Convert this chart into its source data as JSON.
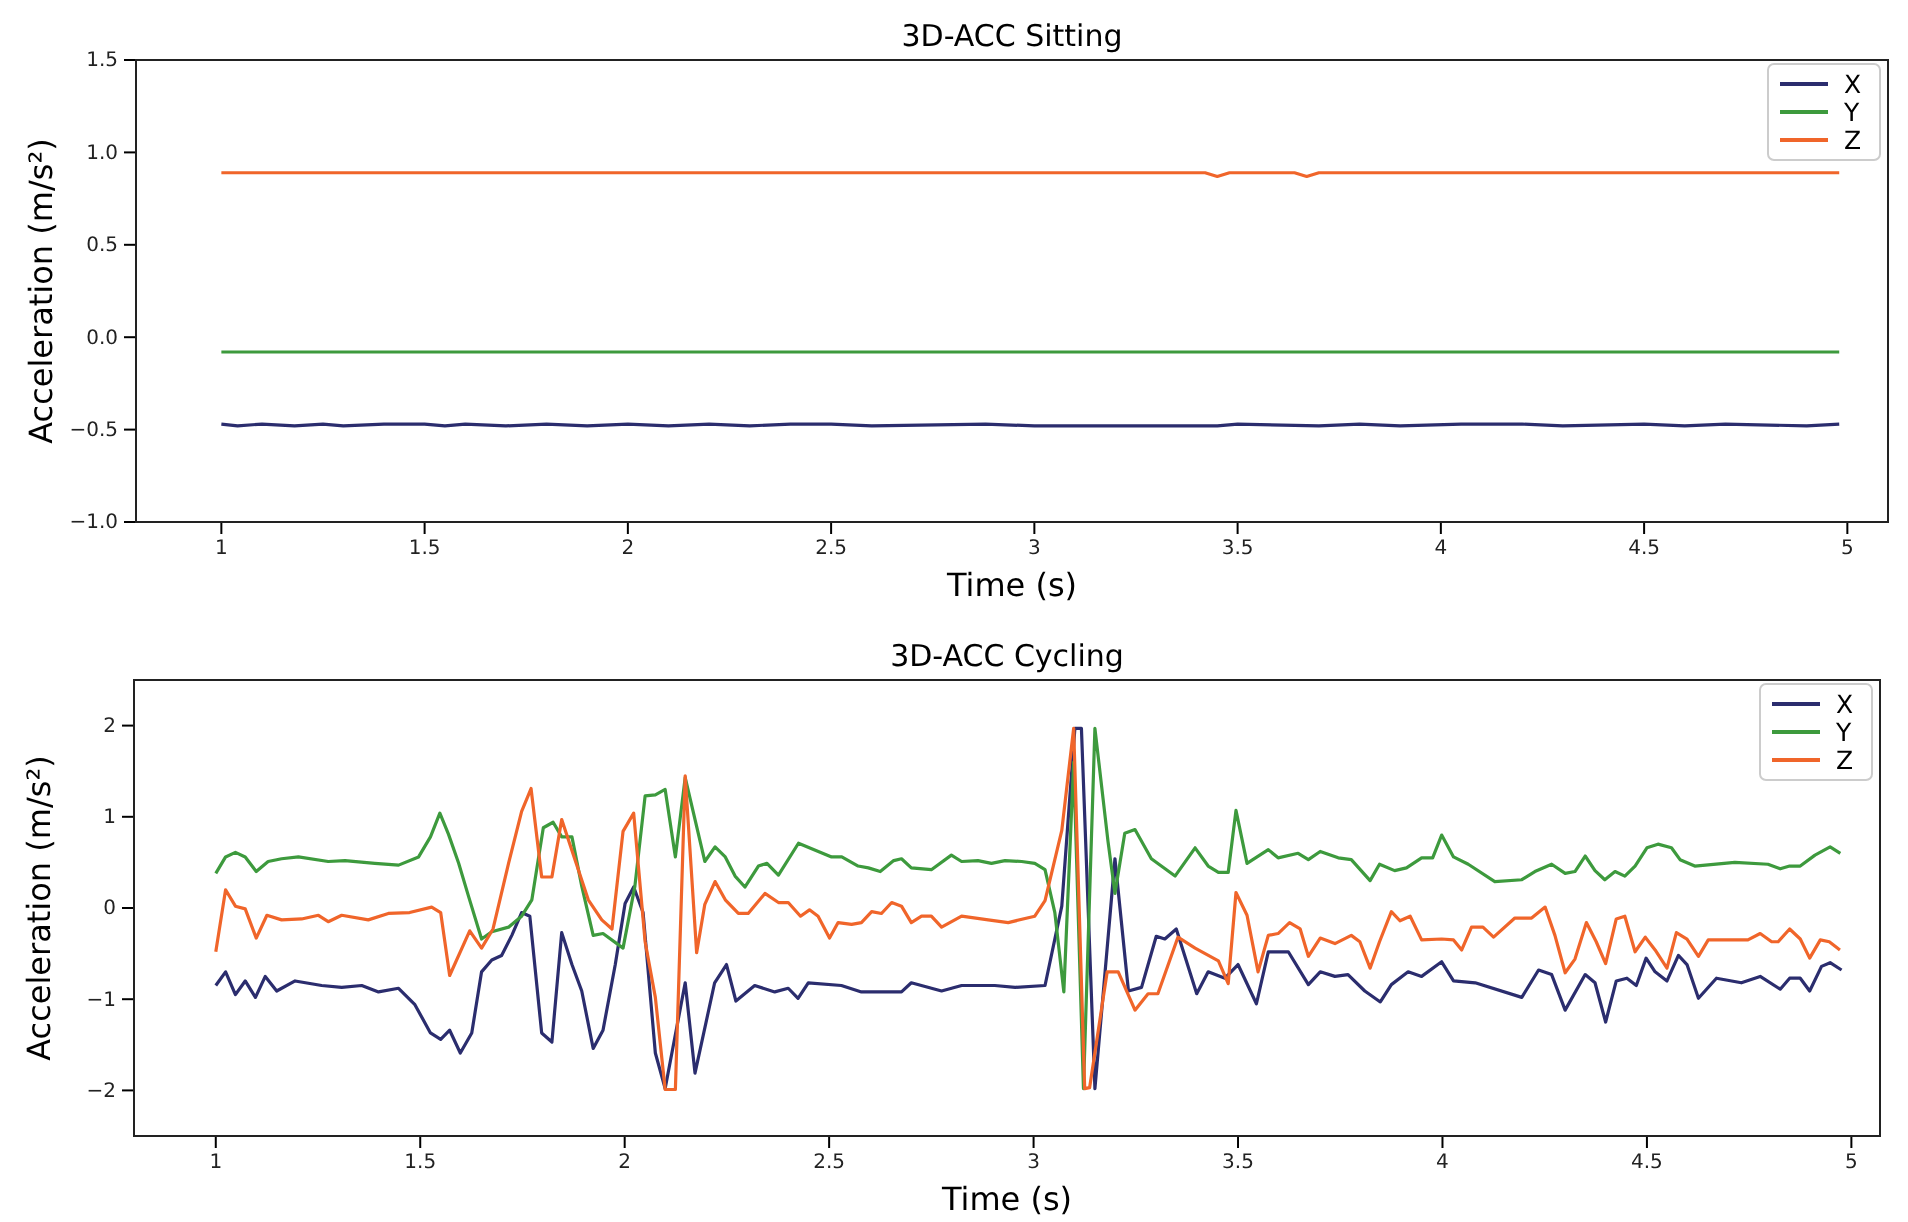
{
  "chart_data": [
    {
      "type": "line",
      "title": "3D-ACC Sitting",
      "xlabel": "Time (s)",
      "ylabel": "Acceleration (m/s²)",
      "xlim": [
        0.79,
        5.1
      ],
      "ylim": [
        -1,
        1.5
      ],
      "xticks": [
        1,
        1.5,
        2,
        2.5,
        3,
        3.5,
        4,
        4.5,
        5
      ],
      "yticks": [
        {
          "value": -1,
          "label": "−1.0"
        },
        {
          "value": -0.5,
          "label": "−0.5"
        },
        {
          "value": 0,
          "label": "0.0"
        },
        {
          "value": 0.5,
          "label": "0.5"
        },
        {
          "value": 1,
          "label": "1.0"
        },
        {
          "value": 1.5,
          "label": "1.5"
        }
      ],
      "legend": "top right",
      "series": [
        {
          "name": "X",
          "color": "#2b2d6e",
          "x": [
            1,
            1.04,
            1.1,
            1.18,
            1.25,
            1.3,
            1.4,
            1.5,
            1.55,
            1.6,
            1.7,
            1.8,
            1.9,
            2,
            2.1,
            2.2,
            2.3,
            2.4,
            2.5,
            2.6,
            2.88,
            3,
            3.45,
            3.5,
            3.7,
            3.8,
            3.9,
            4.05,
            4.2,
            4.3,
            4.5,
            4.6,
            4.7,
            4.9,
            4.98
          ],
          "values": [
            -0.47,
            -0.48,
            -0.47,
            -0.48,
            -0.47,
            -0.48,
            -0.47,
            -0.47,
            -0.48,
            -0.47,
            -0.48,
            -0.47,
            -0.48,
            -0.47,
            -0.48,
            -0.47,
            -0.48,
            -0.47,
            -0.47,
            -0.48,
            -0.47,
            -0.48,
            -0.48,
            -0.47,
            -0.48,
            -0.47,
            -0.48,
            -0.47,
            -0.47,
            -0.48,
            -0.47,
            -0.48,
            -0.47,
            -0.48,
            -0.47
          ]
        },
        {
          "name": "Y",
          "color": "#3d9a3d",
          "x": [
            1,
            4.98
          ],
          "values": [
            -0.08,
            -0.08
          ]
        },
        {
          "name": "Z",
          "color": "#f0652a",
          "x": [
            1,
            3.42,
            3.45,
            3.48,
            3.64,
            3.67,
            3.7,
            4.98
          ],
          "values": [
            0.89,
            0.89,
            0.87,
            0.89,
            0.89,
            0.87,
            0.89,
            0.89
          ]
        }
      ]
    },
    {
      "type": "line",
      "title": "3D-ACC Cycling",
      "xlabel": "Time (s)",
      "ylabel": "Acceleration (m/s²)",
      "xlim": [
        0.8,
        5.07
      ],
      "ylim": [
        -2.5,
        2.5
      ],
      "xticks": [
        1,
        1.5,
        2,
        2.5,
        3,
        3.5,
        4,
        4.5,
        5
      ],
      "yticks": [
        {
          "value": -2,
          "label": "−2"
        },
        {
          "value": -1,
          "label": "−1"
        },
        0,
        1,
        2
      ],
      "legend": "top right",
      "series": [
        {
          "name": "X",
          "color": "#2b2d6e",
          "x": [
            1,
            1.024,
            1.048,
            1.072,
            1.097,
            1.121,
            1.149,
            1.194,
            1.259,
            1.308,
            1.357,
            1.398,
            1.447,
            1.487,
            1.525,
            1.55,
            1.572,
            1.598,
            1.626,
            1.65,
            1.675,
            1.699,
            1.724,
            1.748,
            1.768,
            1.797,
            1.822,
            1.846,
            1.871,
            1.895,
            1.923,
            1.947,
            1.977,
            2.001,
            2.022,
            2.045,
            2.075,
            2.099,
            2.148,
            2.172,
            2.22,
            2.249,
            2.272,
            2.318,
            2.367,
            2.4,
            2.424,
            2.449,
            2.53,
            2.579,
            2.677,
            2.701,
            2.775,
            2.824,
            2.905,
            2.955,
            3.028,
            3.069,
            3.101,
            3.117,
            3.15,
            3.199,
            3.232,
            3.264,
            3.3,
            3.321,
            3.349,
            3.399,
            3.427,
            3.468,
            3.5,
            3.545,
            3.574,
            3.623,
            3.672,
            3.701,
            3.737,
            3.769,
            3.81,
            3.848,
            3.875,
            3.916,
            3.949,
            3.998,
            4.027,
            4.08,
            4.194,
            4.235,
            4.267,
            4.3,
            4.349,
            4.373,
            4.399,
            4.425,
            4.451,
            4.474,
            4.498,
            4.52,
            4.549,
            4.577,
            4.598,
            4.626,
            4.67,
            4.731,
            4.777,
            4.826,
            4.849,
            4.875,
            4.898,
            4.927,
            4.948,
            4.976
          ],
          "values": [
            -0.85,
            -0.7,
            -0.95,
            -0.8,
            -0.98,
            -0.75,
            -0.91,
            -0.8,
            -0.85,
            -0.87,
            -0.85,
            -0.92,
            -0.88,
            -1.06,
            -1.37,
            -1.44,
            -1.34,
            -1.59,
            -1.37,
            -0.7,
            -0.57,
            -0.52,
            -0.3,
            -0.05,
            -0.09,
            -1.37,
            -1.47,
            -0.27,
            -0.62,
            -0.91,
            -1.54,
            -1.34,
            -0.62,
            0.05,
            0.23,
            -0.05,
            -1.59,
            -1.98,
            -0.82,
            -1.81,
            -0.82,
            -0.62,
            -1.02,
            -0.85,
            -0.92,
            -0.88,
            -0.99,
            -0.82,
            -0.85,
            -0.92,
            -0.92,
            -0.82,
            -0.91,
            -0.85,
            -0.85,
            -0.87,
            -0.85,
            0.02,
            1.97,
            1.97,
            -1.98,
            0.54,
            -0.91,
            -0.87,
            -0.31,
            -0.34,
            -0.23,
            -0.94,
            -0.7,
            -0.77,
            -0.62,
            -1.05,
            -0.48,
            -0.48,
            -0.84,
            -0.7,
            -0.75,
            -0.73,
            -0.91,
            -1.03,
            -0.84,
            -0.7,
            -0.75,
            -0.59,
            -0.8,
            -0.82,
            -0.98,
            -0.68,
            -0.73,
            -1.12,
            -0.73,
            -0.82,
            -1.25,
            -0.8,
            -0.77,
            -0.85,
            -0.55,
            -0.7,
            -0.8,
            -0.52,
            -0.62,
            -0.99,
            -0.77,
            -0.82,
            -0.75,
            -0.89,
            -0.77,
            -0.77,
            -0.91,
            -0.64,
            -0.6,
            -0.68
          ]
        },
        {
          "name": "Y",
          "color": "#3d9a3d",
          "x": [
            1,
            1.024,
            1.048,
            1.072,
            1.099,
            1.128,
            1.161,
            1.202,
            1.275,
            1.316,
            1.389,
            1.447,
            1.496,
            1.525,
            1.548,
            1.569,
            1.594,
            1.618,
            1.65,
            1.675,
            1.716,
            1.748,
            1.773,
            1.801,
            1.825,
            1.846,
            1.871,
            1.895,
            1.923,
            1.947,
            1.996,
            2.025,
            2.05,
            2.075,
            2.099,
            2.124,
            2.148,
            2.196,
            2.221,
            2.246,
            2.27,
            2.294,
            2.327,
            2.348,
            2.376,
            2.425,
            2.506,
            2.531,
            2.571,
            2.596,
            2.625,
            2.658,
            2.677,
            2.701,
            2.75,
            2.799,
            2.824,
            2.864,
            2.897,
            2.93,
            2.971,
            3.003,
            3.028,
            3.052,
            3.074,
            3.098,
            3.122,
            3.15,
            3.182,
            3.199,
            3.223,
            3.248,
            3.288,
            3.346,
            3.395,
            3.427,
            3.452,
            3.476,
            3.495,
            3.522,
            3.574,
            3.598,
            3.647,
            3.672,
            3.701,
            3.745,
            3.777,
            3.823,
            3.846,
            3.883,
            3.912,
            3.949,
            3.976,
            3.998,
            4.027,
            4.063,
            4.128,
            4.194,
            4.226,
            4.267,
            4.3,
            4.324,
            4.349,
            4.373,
            4.397,
            4.422,
            4.446,
            4.471,
            4.5,
            4.527,
            4.56,
            4.581,
            4.617,
            4.715,
            4.796,
            4.826,
            4.849,
            4.875,
            4.911,
            4.948,
            4.973
          ],
          "values": [
            0.38,
            0.56,
            0.61,
            0.56,
            0.4,
            0.51,
            0.54,
            0.56,
            0.51,
            0.52,
            0.49,
            0.47,
            0.56,
            0.78,
            1.04,
            0.81,
            0.49,
            0.13,
            -0.34,
            -0.26,
            -0.21,
            -0.09,
            0.09,
            0.88,
            0.94,
            0.78,
            0.78,
            0.24,
            -0.3,
            -0.28,
            -0.44,
            0.24,
            1.23,
            1.24,
            1.3,
            0.56,
            1.43,
            0.51,
            0.67,
            0.56,
            0.35,
            0.23,
            0.46,
            0.49,
            0.36,
            0.71,
            0.56,
            0.56,
            0.46,
            0.44,
            0.4,
            0.52,
            0.54,
            0.44,
            0.42,
            0.58,
            0.51,
            0.52,
            0.49,
            0.52,
            0.51,
            0.49,
            0.42,
            -0.05,
            -0.92,
            1.6,
            -1.98,
            1.97,
            0.73,
            0.16,
            0.82,
            0.86,
            0.54,
            0.35,
            0.66,
            0.46,
            0.39,
            0.39,
            1.07,
            0.49,
            0.64,
            0.55,
            0.6,
            0.53,
            0.62,
            0.55,
            0.53,
            0.3,
            0.48,
            0.41,
            0.44,
            0.55,
            0.55,
            0.8,
            0.56,
            0.48,
            0.29,
            0.31,
            0.4,
            0.48,
            0.38,
            0.4,
            0.57,
            0.41,
            0.31,
            0.4,
            0.35,
            0.46,
            0.66,
            0.7,
            0.66,
            0.53,
            0.46,
            0.5,
            0.48,
            0.43,
            0.46,
            0.46,
            0.58,
            0.67,
            0.6
          ]
        },
        {
          "name": "Z",
          "color": "#f0652a",
          "x": [
            1,
            1.024,
            1.048,
            1.072,
            1.099,
            1.125,
            1.161,
            1.21,
            1.251,
            1.275,
            1.308,
            1.373,
            1.422,
            1.474,
            1.528,
            1.55,
            1.572,
            1.621,
            1.65,
            1.678,
            1.716,
            1.748,
            1.771,
            1.797,
            1.822,
            1.846,
            1.871,
            1.911,
            1.944,
            1.969,
            1.996,
            2.022,
            2.05,
            2.075,
            2.099,
            2.124,
            2.148,
            2.176,
            2.196,
            2.221,
            2.246,
            2.278,
            2.302,
            2.343,
            2.376,
            2.4,
            2.43,
            2.452,
            2.473,
            2.501,
            2.522,
            2.555,
            2.579,
            2.604,
            2.628,
            2.653,
            2.677,
            2.701,
            2.726,
            2.75,
            2.775,
            2.824,
            2.889,
            2.938,
            3.003,
            3.028,
            3.069,
            3.098,
            3.125,
            3.137,
            3.18,
            3.207,
            3.248,
            3.28,
            3.304,
            3.353,
            3.395,
            3.452,
            3.476,
            3.495,
            3.522,
            3.549,
            3.574,
            3.598,
            3.626,
            3.652,
            3.672,
            3.701,
            3.737,
            3.777,
            3.798,
            3.823,
            3.846,
            3.875,
            3.896,
            3.921,
            3.949,
            3.998,
            4.027,
            4.047,
            4.071,
            4.099,
            4.125,
            4.177,
            4.218,
            4.251,
            4.275,
            4.3,
            4.324,
            4.352,
            4.376,
            4.399,
            4.425,
            4.446,
            4.471,
            4.496,
            4.52,
            4.549,
            4.572,
            4.598,
            4.626,
            4.65,
            4.747,
            4.777,
            4.805,
            4.821,
            4.849,
            4.875,
            4.898,
            4.924,
            4.946,
            4.972
          ],
          "values": [
            -0.48,
            0.2,
            0.02,
            -0.01,
            -0.33,
            -0.08,
            -0.13,
            -0.12,
            -0.08,
            -0.15,
            -0.08,
            -0.13,
            -0.06,
            -0.05,
            0.01,
            -0.05,
            -0.74,
            -0.25,
            -0.44,
            -0.23,
            0.49,
            1.06,
            1.31,
            0.34,
            0.34,
            0.97,
            0.63,
            0.09,
            -0.13,
            -0.23,
            0.84,
            1.04,
            -0.37,
            -0.98,
            -1.99,
            -1.99,
            1.45,
            -0.49,
            0.04,
            0.29,
            0.09,
            -0.06,
            -0.06,
            0.16,
            0.06,
            0.06,
            -0.09,
            -0.02,
            -0.09,
            -0.33,
            -0.16,
            -0.18,
            -0.16,
            -0.04,
            -0.06,
            0.06,
            0.02,
            -0.16,
            -0.09,
            -0.09,
            -0.21,
            -0.09,
            -0.13,
            -0.16,
            -0.09,
            0.08,
            0.85,
            1.97,
            -1.98,
            -1.97,
            -0.7,
            -0.7,
            -1.12,
            -0.94,
            -0.94,
            -0.32,
            -0.44,
            -0.58,
            -0.83,
            0.17,
            -0.08,
            -0.7,
            -0.3,
            -0.28,
            -0.16,
            -0.23,
            -0.53,
            -0.33,
            -0.39,
            -0.3,
            -0.37,
            -0.66,
            -0.37,
            -0.04,
            -0.14,
            -0.09,
            -0.35,
            -0.34,
            -0.35,
            -0.46,
            -0.21,
            -0.21,
            -0.32,
            -0.11,
            -0.11,
            0.01,
            -0.3,
            -0.71,
            -0.56,
            -0.16,
            -0.37,
            -0.61,
            -0.12,
            -0.09,
            -0.48,
            -0.32,
            -0.46,
            -0.66,
            -0.27,
            -0.34,
            -0.53,
            -0.35,
            -0.35,
            -0.28,
            -0.37,
            -0.37,
            -0.23,
            -0.34,
            -0.55,
            -0.35,
            -0.37,
            -0.46
          ]
        }
      ]
    }
  ]
}
